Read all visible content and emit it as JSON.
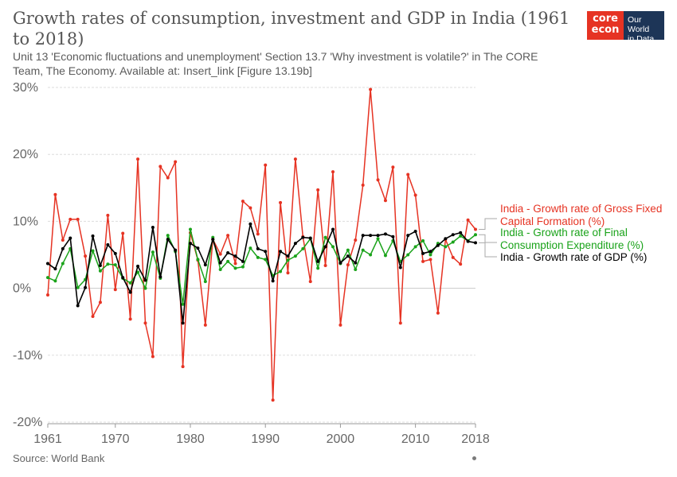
{
  "header": {
    "title": "Growth rates of consumption, investment and GDP in India (1961 to 2018)",
    "subtitle": "Unit 13 'Economic fluctuations and unemployment' Section 13.7 'Why investment is volatile?' in The CORE Team, The Economy. Available at: Insert_link [Figure 13.19b]"
  },
  "logo": {
    "core_line1": "core",
    "core_line2": "econ",
    "owid_line1": "Our World",
    "owid_line2": "in Data"
  },
  "footer": {
    "source": "Source: World Bank"
  },
  "colors": {
    "gfcf": "#e63323",
    "consumption": "#1aa31a",
    "gdp": "#000000",
    "grid": "#dddddd"
  },
  "chart_data": {
    "type": "line",
    "title": "Growth rates of consumption, investment and GDP in India (1961 to 2018)",
    "ylim": [
      -20,
      30
    ],
    "y_ticks": [
      -20,
      -10,
      0,
      10,
      20,
      30
    ],
    "y_tick_labels": [
      "-20%",
      "-10%",
      "0%",
      "10%",
      "20%",
      "30%"
    ],
    "xlim": [
      1961,
      2018
    ],
    "x_ticks": [
      1961,
      1970,
      1980,
      1990,
      2000,
      2010,
      2018
    ],
    "x_tick_labels": [
      "1961",
      "1970",
      "1980",
      "1990",
      "2000",
      "2010",
      "2018"
    ],
    "grid": "horizontal",
    "legend_placement": "right",
    "x": [
      1961,
      1962,
      1963,
      1964,
      1965,
      1966,
      1967,
      1968,
      1969,
      1970,
      1971,
      1972,
      1973,
      1974,
      1975,
      1976,
      1977,
      1978,
      1979,
      1980,
      1981,
      1982,
      1983,
      1984,
      1985,
      1986,
      1987,
      1988,
      1989,
      1990,
      1991,
      1992,
      1993,
      1994,
      1995,
      1996,
      1997,
      1998,
      1999,
      2000,
      2001,
      2002,
      2003,
      2004,
      2005,
      2006,
      2007,
      2008,
      2009,
      2010,
      2011,
      2012,
      2013,
      2014,
      2015,
      2016,
      2017,
      2018
    ],
    "series": [
      {
        "name": "India - Growth rate of Gross Fixed Capital Formation (%)",
        "color": "#e63323",
        "values": [
          -1.0,
          14.0,
          7.2,
          10.3,
          10.3,
          4.8,
          -4.2,
          -2.1,
          10.9,
          -0.2,
          8.2,
          -4.6,
          19.3,
          -5.2,
          -10.2,
          18.2,
          16.5,
          18.9,
          -11.7,
          8.3,
          4.2,
          -5.5,
          7.3,
          5.1,
          7.9,
          3.7,
          13.0,
          12.0,
          8.1,
          18.4,
          -16.7,
          12.8,
          2.3,
          19.3,
          7.7,
          1.0,
          14.7,
          3.4,
          17.4,
          -5.5,
          3.5,
          7.2,
          15.4,
          29.7,
          16.2,
          13.1,
          18.1,
          -5.2,
          17.0,
          13.9,
          4.0,
          4.3,
          -3.7,
          7.3,
          4.6,
          3.6,
          10.2,
          8.8
        ]
      },
      {
        "name": "India - Growth rate of Final Consumption Expenditure (%)",
        "color": "#1aa31a",
        "values": [
          1.6,
          1.1,
          3.7,
          5.9,
          0.1,
          1.3,
          5.6,
          2.6,
          3.6,
          3.5,
          1.5,
          0.8,
          2.4,
          0.0,
          5.4,
          1.5,
          7.9,
          5.5,
          -2.4,
          8.8,
          4.3,
          1.0,
          7.6,
          2.8,
          4.0,
          3.0,
          3.2,
          6.0,
          4.6,
          4.3,
          1.9,
          2.5,
          4.2,
          4.8,
          5.9,
          7.4,
          3.0,
          7.6,
          6.2,
          3.7,
          5.7,
          2.8,
          5.7,
          5.0,
          7.4,
          4.9,
          7.1,
          4.0,
          5.0,
          6.2,
          7.1,
          5.0,
          6.7,
          6.2,
          6.9,
          7.8,
          7.1,
          8.0
        ]
      },
      {
        "name": "India - Growth rate of GDP (%)",
        "color": "#000000",
        "values": [
          3.7,
          2.9,
          5.9,
          7.5,
          -2.6,
          0.1,
          7.8,
          3.4,
          6.5,
          5.2,
          1.6,
          -0.6,
          3.3,
          1.2,
          9.1,
          1.7,
          7.3,
          5.7,
          -5.2,
          6.7,
          6.0,
          3.5,
          7.3,
          3.8,
          5.3,
          4.8,
          4.0,
          9.6,
          5.9,
          5.5,
          1.1,
          5.5,
          4.8,
          6.7,
          7.6,
          7.5,
          4.0,
          6.2,
          8.8,
          3.8,
          4.8,
          3.8,
          7.9,
          7.9,
          7.9,
          8.1,
          7.7,
          3.1,
          7.9,
          8.5,
          5.2,
          5.5,
          6.4,
          7.4,
          8.0,
          8.3,
          7.0,
          6.8
        ]
      }
    ],
    "legend": [
      {
        "line1": "India - Growth rate of Gross Fixed",
        "line2": "Capital Formation (%)",
        "color": "#e63323"
      },
      {
        "line1": "India - Growth rate of Final",
        "line2": "Consumption Expenditure (%)",
        "color": "#1aa31a"
      },
      {
        "line1": "India - Growth rate of GDP (%)",
        "line2": "",
        "color": "#000000"
      }
    ]
  }
}
